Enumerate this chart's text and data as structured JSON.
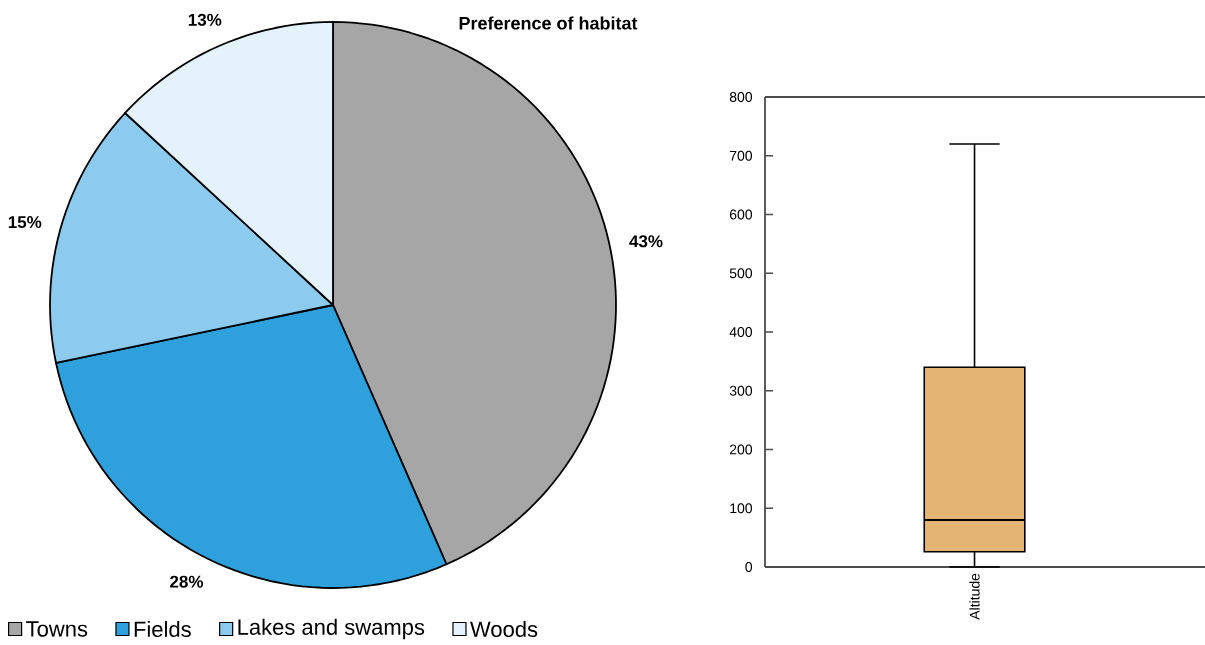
{
  "chart_data": [
    {
      "type": "pie",
      "title": "Preference of habitat",
      "categories": [
        "Towns",
        "Fields",
        "Lakes and swamps",
        "Woods"
      ],
      "values": [
        43,
        28,
        15,
        13
      ],
      "colors": [
        "#a6a6a6",
        "#2ea0db",
        "#8ccbee",
        "#e4f2fb"
      ],
      "value_labels": [
        "43%",
        "28%",
        "15%",
        "13%"
      ],
      "legend": "bottom"
    },
    {
      "type": "box",
      "categories": [
        "Altitude"
      ],
      "colors": [
        "#e3b574"
      ],
      "boxes": [
        {
          "low": 0,
          "q1": 26,
          "median": 80,
          "q3": 340,
          "high": 720
        }
      ],
      "ylim": [
        0,
        800
      ],
      "yticks": [
        0,
        100,
        200,
        300,
        400,
        500,
        600,
        700,
        800
      ]
    }
  ]
}
